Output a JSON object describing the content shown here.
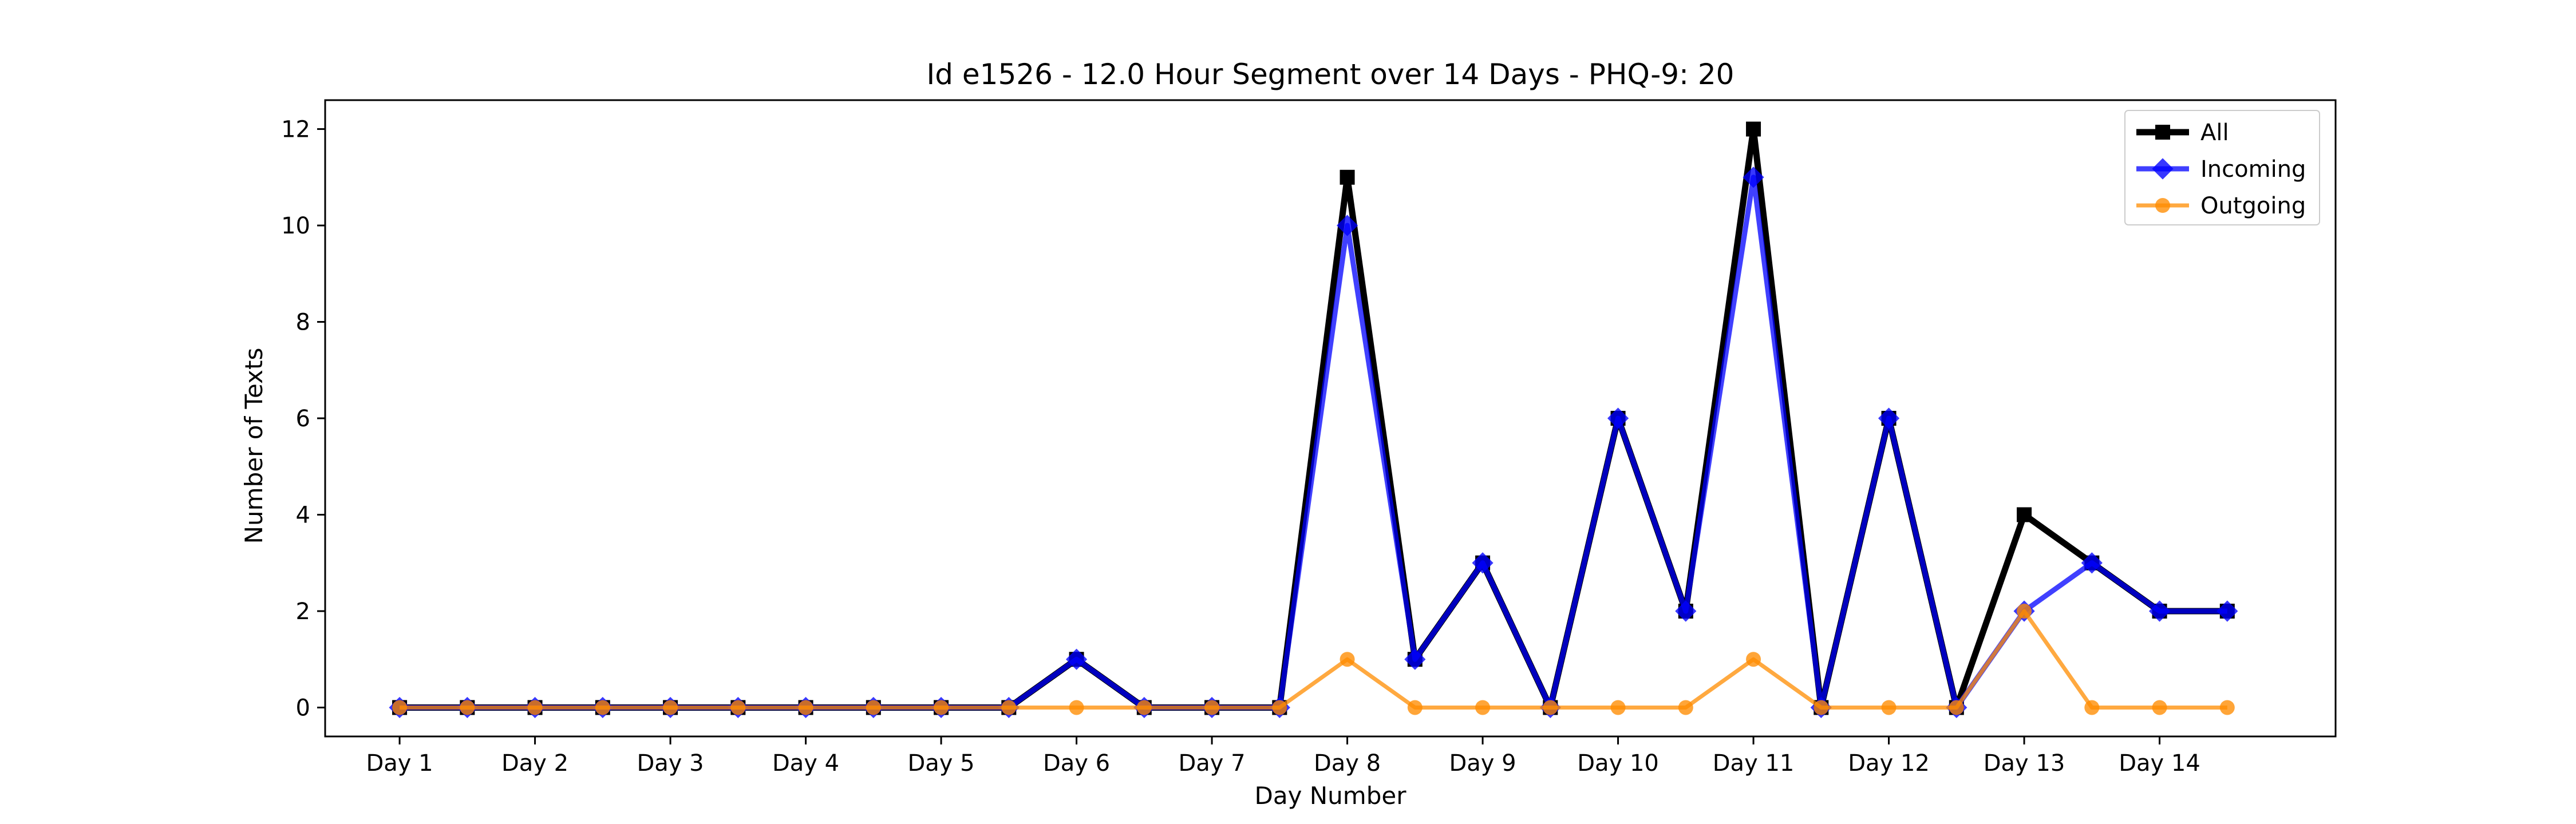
{
  "chart_data": {
    "type": "line",
    "title": "Id e1526 - 12.0 Hour Segment over 14 Days - PHQ-9: 20",
    "xlabel": "Day Number",
    "ylabel": "Number of Texts",
    "tick_labels": [
      "Day 1",
      "Day 2",
      "Day 3",
      "Day 4",
      "Day 5",
      "Day 6",
      "Day 7",
      "Day 8",
      "Day 9",
      "Day 10",
      "Day 11",
      "Day 12",
      "Day 13",
      "Day 14"
    ],
    "x": [
      1,
      1.5,
      2,
      2.5,
      3,
      3.5,
      4,
      4.5,
      5,
      5.5,
      6,
      6.5,
      7,
      7.5,
      8,
      8.5,
      9,
      9.5,
      10,
      10.5,
      11,
      11.5,
      12,
      12.5,
      13,
      13.5,
      14,
      14.5
    ],
    "y_ticks": [
      0,
      2,
      4,
      6,
      8,
      10,
      12
    ],
    "xlim": [
      0.45,
      15.3
    ],
    "ylim": [
      -0.6,
      12.6
    ],
    "grid": false,
    "legend_position": "top-right",
    "series": [
      {
        "name": "All",
        "color": "#000000",
        "marker": "square",
        "values": [
          0,
          0,
          0,
          0,
          0,
          0,
          0,
          0,
          0,
          0,
          1,
          0,
          0,
          0,
          11,
          1,
          3,
          0,
          6,
          2,
          12,
          0,
          6,
          0,
          4,
          3,
          2,
          2
        ]
      },
      {
        "name": "Incoming",
        "color": "#0000ff",
        "marker": "diamond",
        "values": [
          0,
          0,
          0,
          0,
          0,
          0,
          0,
          0,
          0,
          0,
          1,
          0,
          0,
          0,
          10,
          1,
          3,
          0,
          6,
          2,
          11,
          0,
          6,
          0,
          2,
          3,
          2,
          2
        ]
      },
      {
        "name": "Outgoing",
        "color": "#ff8c00",
        "marker": "circle",
        "values": [
          0,
          0,
          0,
          0,
          0,
          0,
          0,
          0,
          0,
          0,
          0,
          0,
          0,
          0,
          1,
          0,
          0,
          0,
          0,
          0,
          1,
          0,
          0,
          0,
          2,
          0,
          0,
          0
        ]
      }
    ]
  }
}
